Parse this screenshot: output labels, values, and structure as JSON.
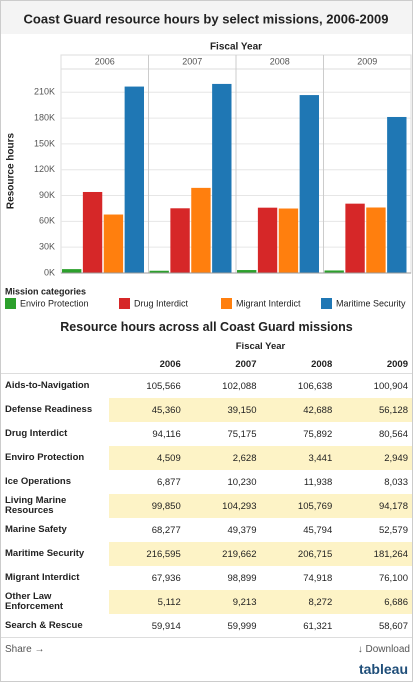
{
  "chart_data": {
    "type": "bar",
    "title": "Coast Guard resource hours by select missions, 2006-2009",
    "column_header": "Fiscal Year",
    "y_label": "Resource hours",
    "legend_title": "Mission categories",
    "categories": [
      "2006",
      "2007",
      "2008",
      "2009"
    ],
    "series": [
      {
        "name": "Enviro Protection",
        "color": "#2ca02c",
        "values": [
          4509,
          2628,
          3441,
          2949
        ]
      },
      {
        "name": "Drug Interdict",
        "color": "#d62728",
        "values": [
          94116,
          75175,
          75892,
          80564
        ]
      },
      {
        "name": "Migrant Interdict",
        "color": "#ff7f0e",
        "values": [
          67936,
          98899,
          74918,
          76100
        ]
      },
      {
        "name": "Maritime Security",
        "color": "#1f77b4",
        "values": [
          216595,
          219662,
          206715,
          181264
        ]
      }
    ],
    "ylim": [
      0,
      237000
    ],
    "yticks": [
      {
        "value": 0,
        "label": "0K"
      },
      {
        "value": 30000,
        "label": "30K"
      },
      {
        "value": 60000,
        "label": "60K"
      },
      {
        "value": 90000,
        "label": "90K"
      },
      {
        "value": 120000,
        "label": "120K"
      },
      {
        "value": 150000,
        "label": "150K"
      },
      {
        "value": 180000,
        "label": "180K"
      },
      {
        "value": 210000,
        "label": "210K"
      }
    ],
    "grid": true
  },
  "table": {
    "title": "Resource hours across all Coast Guard missions",
    "column_header": "Fiscal Year",
    "columns": [
      "2006",
      "2007",
      "2008",
      "2009"
    ],
    "rows": [
      [
        "Aids-to-Navigation",
        "105,566",
        "102,088",
        "106,638",
        "100,904"
      ],
      [
        "Defense Readiness",
        "45,360",
        "39,150",
        "42,688",
        "56,128"
      ],
      [
        "Drug Interdict",
        "94,116",
        "75,175",
        "75,892",
        "80,564"
      ],
      [
        "Enviro Protection",
        "4,509",
        "2,628",
        "3,441",
        "2,949"
      ],
      [
        "Ice Operations",
        "6,877",
        "10,230",
        "11,938",
        "8,033"
      ],
      [
        "Living Marine Resources",
        "99,850",
        "104,293",
        "105,769",
        "94,178"
      ],
      [
        "Marine Safety",
        "68,277",
        "49,379",
        "45,794",
        "52,579"
      ],
      [
        "Maritime Security",
        "216,595",
        "219,662",
        "206,715",
        "181,264"
      ],
      [
        "Migrant Interdict",
        "67,936",
        "98,899",
        "74,918",
        "76,100"
      ],
      [
        "Other Law Enforcement",
        "5,112",
        "9,213",
        "8,272",
        "6,686"
      ],
      [
        "Search & Rescue",
        "59,914",
        "59,999",
        "61,321",
        "58,607"
      ]
    ]
  },
  "footer": {
    "share": "Share",
    "download": "Download",
    "brand": "tableau"
  }
}
